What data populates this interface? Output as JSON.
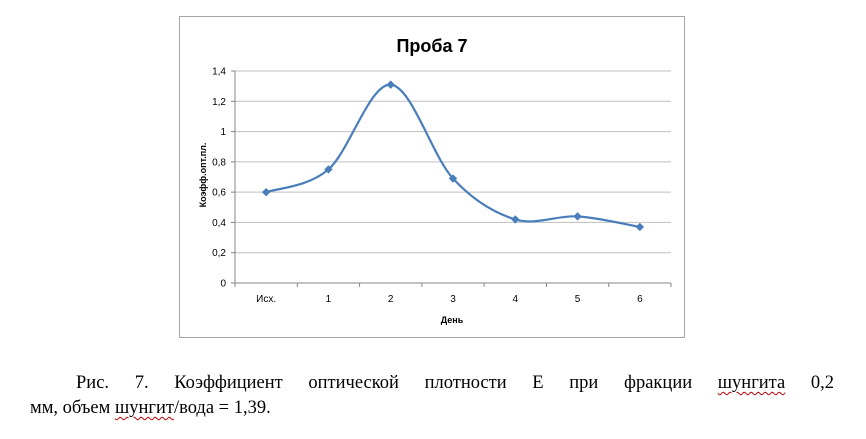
{
  "chart_data": {
    "type": "line",
    "title": "Проба 7",
    "xlabel": "День",
    "ylabel": "Коэфф.опт.пл.",
    "categories": [
      "Исх.",
      "1",
      "2",
      "3",
      "4",
      "5",
      "6"
    ],
    "series": [
      {
        "values": [
          0.6,
          0.75,
          1.31,
          0.69,
          0.42,
          0.44,
          0.37
        ]
      }
    ],
    "ylim": [
      0,
      1.4
    ],
    "yticks": [
      0,
      0.2,
      0.4,
      0.6,
      0.8,
      1,
      1.2,
      1.4
    ],
    "ytick_labels": [
      "0",
      "0,2",
      "0,4",
      "0,6",
      "0,8",
      "1",
      "1,2",
      "1,4"
    ],
    "grid": true,
    "legend": "none",
    "line_style": "smooth",
    "marker": "diamond",
    "series_color": "#4a7ebb"
  },
  "caption": {
    "line1_prefix": "Рис. 7. Коэффициент оптической плотности Е при фракции",
    "line1_word_wavy": "шунгита",
    "line1_suffix": "0,2",
    "line2_prefix": "мм, объем",
    "line2_word_wavy": "шунгит",
    "line2_suffix": "/вода = 1,39."
  }
}
